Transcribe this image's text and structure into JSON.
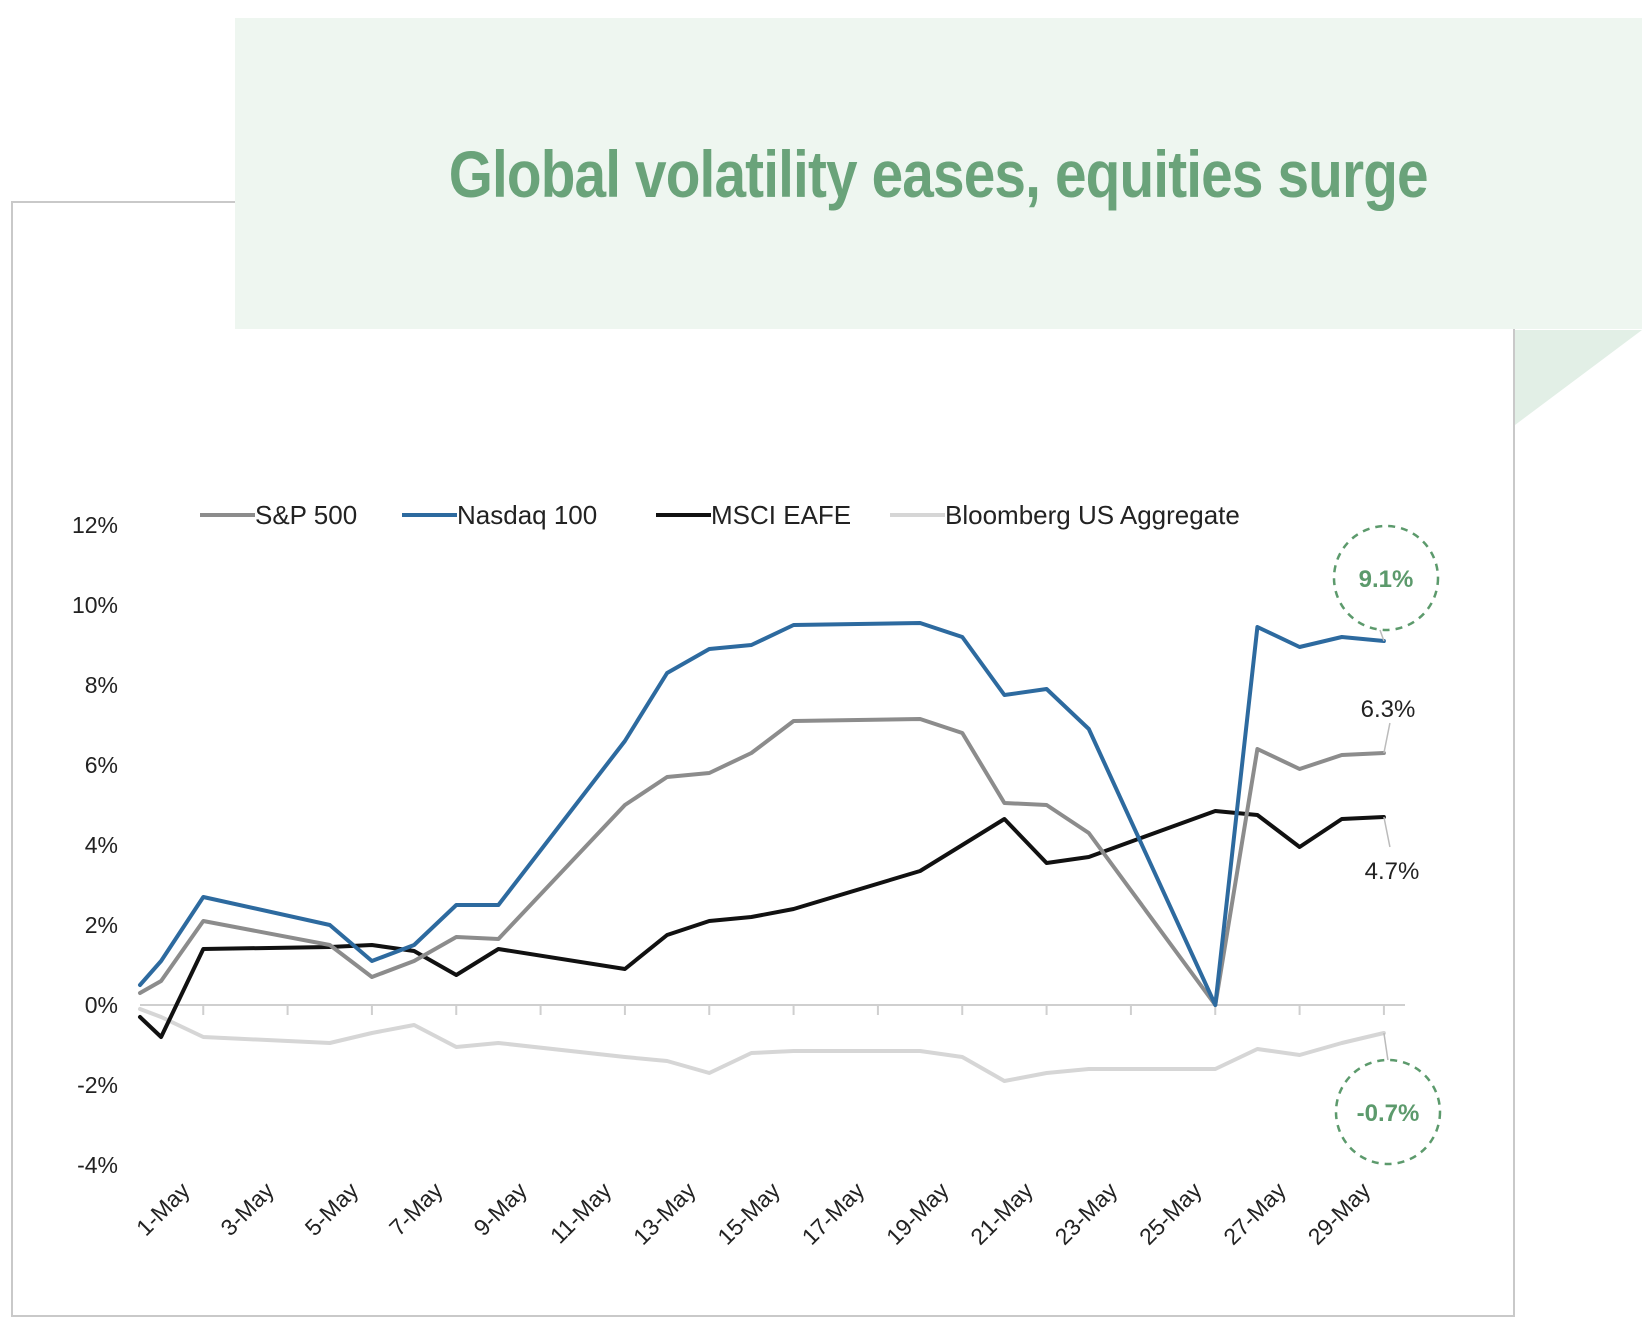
{
  "title": "Global volatility eases, equities surge",
  "colors": {
    "title": "#6aa37a",
    "banner": "#eef6f0",
    "callout": "#5c9a6c",
    "sp500": "#8c8c8c",
    "nasdaq": "#2d6a9f",
    "msci": "#111111",
    "agg": "#d6d6d6"
  },
  "chart_data": {
    "type": "line",
    "title": "Global volatility eases, equities surge",
    "xlabel": "",
    "ylabel": "",
    "ylim": [
      -4,
      12
    ],
    "y_ticks": [
      12,
      10,
      8,
      6,
      4,
      2,
      0,
      -2,
      -4
    ],
    "y_tick_labels": [
      "12%",
      "10%",
      "8%",
      "6%",
      "4%",
      "2%",
      "0%",
      "-2%",
      "-4%"
    ],
    "x_tick_labels": [
      "1-May",
      "3-May",
      "5-May",
      "7-May",
      "9-May",
      "11-May",
      "13-May",
      "15-May",
      "17-May",
      "19-May",
      "21-May",
      "23-May",
      "25-May",
      "27-May",
      "29-May"
    ],
    "x_days": [
      1,
      3,
      5,
      7,
      9,
      11,
      13,
      15,
      17,
      19,
      21,
      23,
      25,
      27,
      29
    ],
    "x_range": [
      0.5,
      30.5
    ],
    "series": [
      {
        "name": "S&P 500",
        "color_key": "sp500",
        "end_label": "6.3%",
        "points": [
          [
            0.5,
            0.3
          ],
          [
            1,
            0.6
          ],
          [
            2,
            2.1
          ],
          [
            5,
            1.5
          ],
          [
            6,
            0.7
          ],
          [
            7,
            1.1
          ],
          [
            8,
            1.7
          ],
          [
            9,
            1.65
          ],
          [
            12,
            5.0
          ],
          [
            13,
            5.7
          ],
          [
            14,
            5.8
          ],
          [
            15,
            6.3
          ],
          [
            16,
            7.1
          ],
          [
            19,
            7.15
          ],
          [
            20,
            6.8
          ],
          [
            21,
            5.05
          ],
          [
            22,
            5.0
          ],
          [
            23,
            4.3
          ],
          [
            26,
            0.0
          ],
          [
            27,
            6.4
          ],
          [
            28,
            5.9
          ],
          [
            29,
            6.25
          ],
          [
            30,
            6.3
          ]
        ]
      },
      {
        "name": "Nasdaq 100",
        "color_key": "nasdaq",
        "end_label": "9.1%",
        "points": [
          [
            0.5,
            0.5
          ],
          [
            1,
            1.1
          ],
          [
            2,
            2.7
          ],
          [
            5,
            2.0
          ],
          [
            6,
            1.1
          ],
          [
            7,
            1.5
          ],
          [
            8,
            2.5
          ],
          [
            9,
            2.5
          ],
          [
            12,
            6.6
          ],
          [
            13,
            8.3
          ],
          [
            14,
            8.9
          ],
          [
            15,
            9.0
          ],
          [
            16,
            9.5
          ],
          [
            19,
            9.55
          ],
          [
            20,
            9.2
          ],
          [
            21,
            7.75
          ],
          [
            22,
            7.9
          ],
          [
            23,
            6.9
          ],
          [
            26,
            0.0
          ],
          [
            27,
            9.45
          ],
          [
            28,
            8.95
          ],
          [
            29,
            9.2
          ],
          [
            30,
            9.1
          ]
        ]
      },
      {
        "name": "MSCI EAFE",
        "color_key": "msci",
        "end_label": "4.7%",
        "points": [
          [
            0.5,
            -0.3
          ],
          [
            1,
            -0.8
          ],
          [
            2,
            1.4
          ],
          [
            5,
            1.45
          ],
          [
            6,
            1.5
          ],
          [
            7,
            1.35
          ],
          [
            8,
            0.75
          ],
          [
            9,
            1.4
          ],
          [
            12,
            0.9
          ],
          [
            13,
            1.75
          ],
          [
            14,
            2.1
          ],
          [
            15,
            2.2
          ],
          [
            16,
            2.4
          ],
          [
            19,
            3.35
          ],
          [
            20,
            4.0
          ],
          [
            21,
            4.65
          ],
          [
            22,
            3.55
          ],
          [
            23,
            3.7
          ],
          [
            26,
            4.85
          ],
          [
            27,
            4.75
          ],
          [
            28,
            3.95
          ],
          [
            29,
            4.65
          ],
          [
            30,
            4.7
          ]
        ]
      },
      {
        "name": "Bloomberg US Aggregate",
        "color_key": "agg",
        "end_label": "-0.7%",
        "points": [
          [
            0.5,
            -0.1
          ],
          [
            1,
            -0.3
          ],
          [
            2,
            -0.8
          ],
          [
            5,
            -0.95
          ],
          [
            6,
            -0.7
          ],
          [
            7,
            -0.5
          ],
          [
            8,
            -1.05
          ],
          [
            9,
            -0.95
          ],
          [
            12,
            -1.3
          ],
          [
            13,
            -1.4
          ],
          [
            14,
            -1.7
          ],
          [
            15,
            -1.2
          ],
          [
            16,
            -1.15
          ],
          [
            19,
            -1.15
          ],
          [
            20,
            -1.3
          ],
          [
            21,
            -1.9
          ],
          [
            22,
            -1.7
          ],
          [
            23,
            -1.6
          ],
          [
            26,
            -1.6
          ],
          [
            27,
            -1.1
          ],
          [
            28,
            -1.25
          ],
          [
            29,
            -0.95
          ],
          [
            30,
            -0.7
          ]
        ]
      }
    ],
    "annotations": [
      {
        "label": "9.1%",
        "series": "Nasdaq 100",
        "style": "dashed-circle"
      },
      {
        "label": "6.3%",
        "series": "S&P 500",
        "style": "text"
      },
      {
        "label": "4.7%",
        "series": "MSCI EAFE",
        "style": "text"
      },
      {
        "label": "-0.7%",
        "series": "Bloomberg US Aggregate",
        "style": "dashed-circle"
      }
    ],
    "legend_position": "top"
  }
}
